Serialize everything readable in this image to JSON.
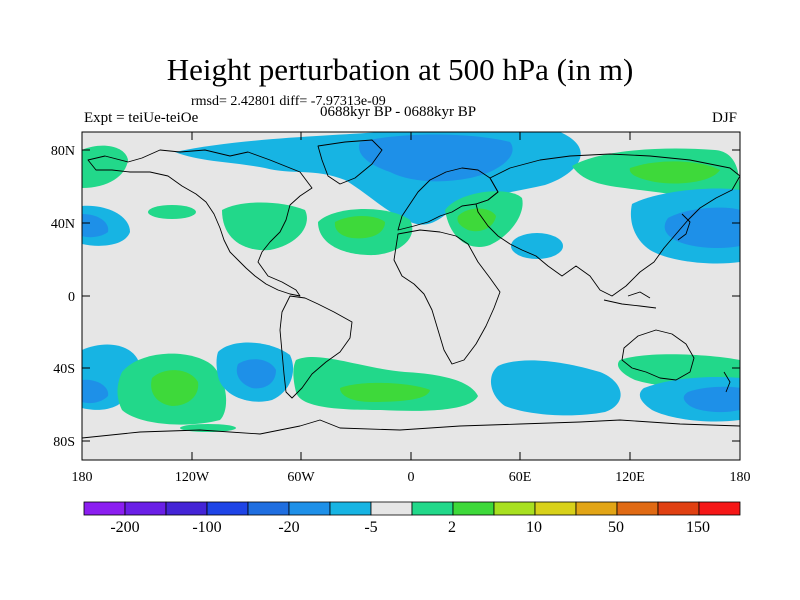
{
  "title": "Height perturbation at 500 hPa (in m)",
  "stats": "rmsd= 2.42801 diff= -7.97313e-09",
  "experiment": "Expt = teiUe-teiOe",
  "period": "0688kyr BP - 0688kyr BP",
  "season": "DJF",
  "lat_labels": [
    "80N",
    "40N",
    "0",
    "40S",
    "80S"
  ],
  "lon_labels": [
    "180",
    "120W",
    "60W",
    "0",
    "60E",
    "120E",
    "180"
  ],
  "colorbar": {
    "colors": [
      "#8b1ef0",
      "#6a1fe6",
      "#4424d6",
      "#1e44e6",
      "#1f6ee0",
      "#1e90e8",
      "#17b4e3",
      "#e6e6e6",
      "#22d88a",
      "#3ed93a",
      "#a8e020",
      "#d8d11a",
      "#e2a516",
      "#e06a14",
      "#e04012",
      "#f51717"
    ],
    "labels": [
      "-200",
      "-100",
      "-20",
      "-5",
      "2",
      "10",
      "50",
      "150"
    ]
  }
}
